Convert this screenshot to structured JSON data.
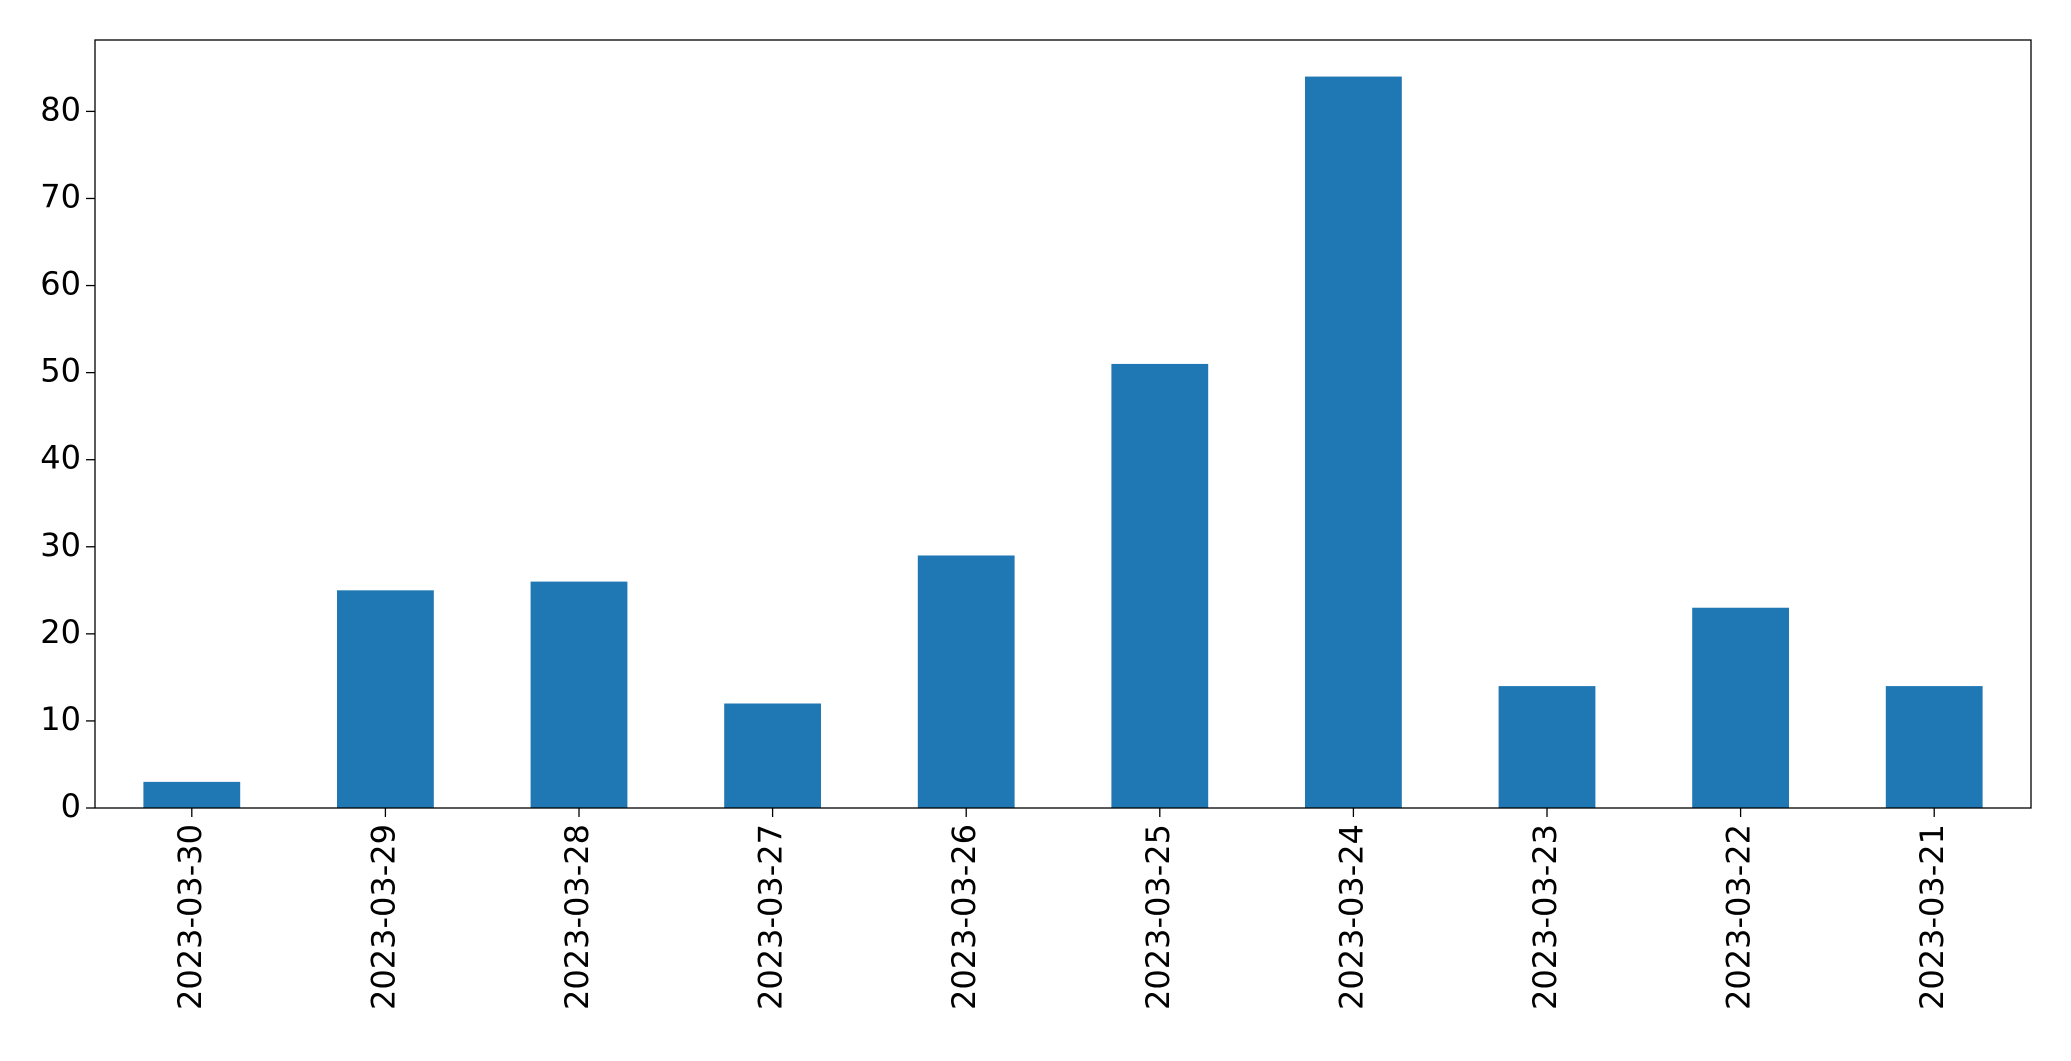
{
  "chart_data": {
    "type": "bar",
    "categories": [
      "2023-03-30",
      "2023-03-29",
      "2023-03-28",
      "2023-03-27",
      "2023-03-26",
      "2023-03-25",
      "2023-03-24",
      "2023-03-23",
      "2023-03-22",
      "2023-03-21"
    ],
    "values": [
      3,
      25,
      26,
      12,
      29,
      51,
      84,
      14,
      23,
      14
    ],
    "color": "#1f77b4",
    "ylim": [
      0,
      88.2
    ],
    "yticks": [
      0,
      10,
      20,
      30,
      40,
      50,
      60,
      70,
      80
    ],
    "grid": false
  }
}
